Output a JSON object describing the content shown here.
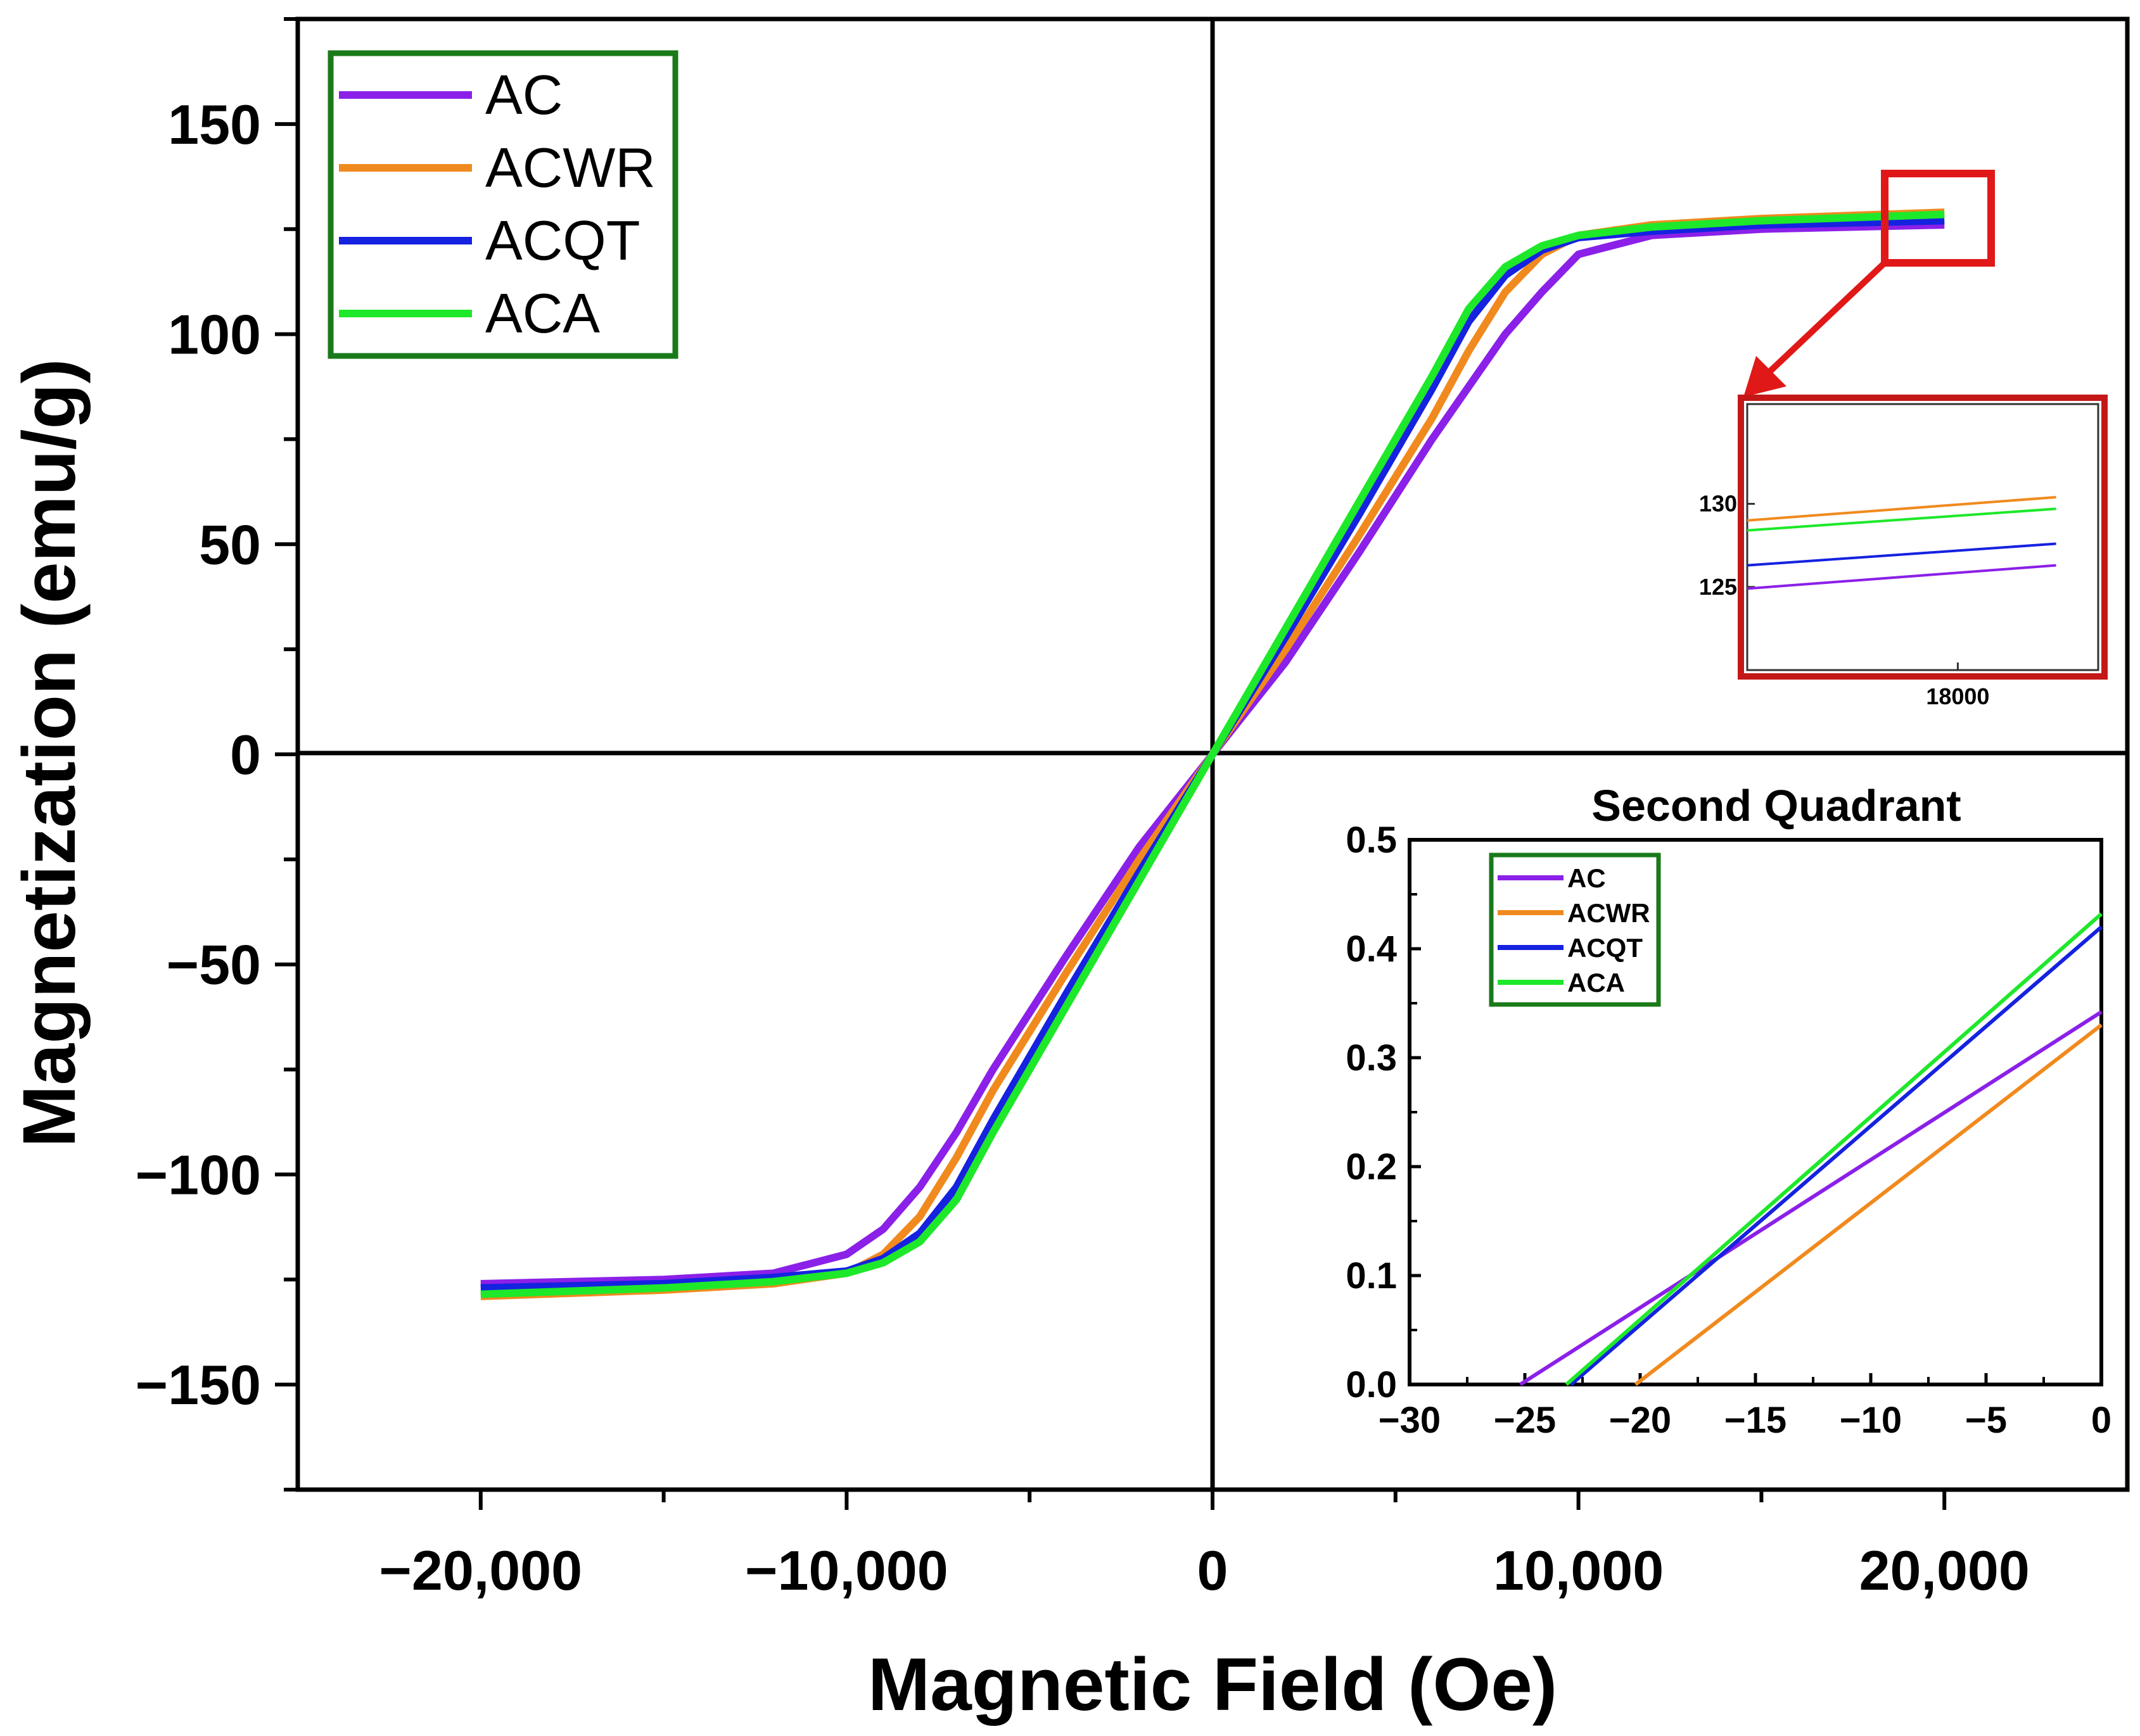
{
  "chart_data": [
    {
      "type": "line",
      "title": "",
      "xlabel": "Magnetic Field (Oe)",
      "ylabel": "Magnetization (emu/g)",
      "xlim": [
        -25000,
        25000
      ],
      "ylim": [
        -175,
        175
      ],
      "xticks": [
        -20000,
        -10000,
        0,
        10000,
        20000
      ],
      "xtick_labels": [
        "−20,000",
        "−10,000",
        "0",
        "10,000",
        "20,000"
      ],
      "yticks": [
        150,
        100,
        50,
        0,
        -50,
        -100,
        -150
      ],
      "ytick_labels": [
        "150",
        "100",
        "50",
        "0",
        "−50",
        "−100",
        "−150"
      ],
      "legend_position": "top-left",
      "series": [
        {
          "name": "AC",
          "color": "#8b20e8",
          "x": [
            -20000,
            -15000,
            -12000,
            -10000,
            -9000,
            -8000,
            -7000,
            -6000,
            -4000,
            -2000,
            0,
            2000,
            4000,
            6000,
            8000,
            9000,
            10000,
            12000,
            15000,
            20000
          ],
          "y": [
            -126,
            -125,
            -123.5,
            -119,
            -113,
            -103,
            -90,
            -75,
            -48,
            -22,
            0,
            22,
            48,
            75,
            100,
            110,
            119,
            123.5,
            125,
            126
          ]
        },
        {
          "name": "ACWR",
          "color": "#f08a1e",
          "x": [
            -20000,
            -15000,
            -12000,
            -10000,
            -9000,
            -8000,
            -7000,
            -6000,
            -4000,
            -2000,
            0,
            2000,
            4000,
            6000,
            7000,
            8000,
            9000,
            10000,
            12000,
            15000,
            20000
          ],
          "y": [
            -129,
            -127.5,
            -126,
            -123.5,
            -119,
            -110,
            -96,
            -80,
            -52,
            -25,
            0,
            25,
            52,
            80,
            96,
            110,
            119,
            123.5,
            126,
            127.5,
            129
          ]
        },
        {
          "name": "ACQT",
          "color": "#1522e0",
          "x": [
            -20000,
            -15000,
            -12000,
            -10000,
            -9000,
            -8000,
            -7000,
            -6000,
            -5000,
            -4000,
            -2000,
            0,
            2000,
            4000,
            5000,
            6000,
            7000,
            8000,
            9000,
            10000,
            12000,
            15000,
            20000
          ],
          "y": [
            -127,
            -126,
            -124.5,
            -123,
            -120,
            -114,
            -103,
            -87,
            -72,
            -57,
            -28,
            0,
            28,
            57,
            72,
            87,
            103,
            114,
            120,
            123,
            124.5,
            126,
            127
          ]
        },
        {
          "name": "ACA",
          "color": "#1ee82a",
          "x": [
            -20000,
            -15000,
            -12000,
            -10000,
            -9000,
            -8000,
            -7000,
            -6000,
            -5000,
            -4000,
            -2000,
            0,
            2000,
            4000,
            5000,
            6000,
            7000,
            8000,
            9000,
            10000,
            12000,
            15000,
            20000
          ],
          "y": [
            -128.5,
            -127,
            -125.5,
            -123.5,
            -121,
            -116,
            -106,
            -90,
            -75,
            -60,
            -30,
            0,
            30,
            60,
            75,
            90,
            106,
            116,
            121,
            123.5,
            125.5,
            127,
            128.5
          ]
        }
      ]
    },
    {
      "type": "line",
      "title": "",
      "xlabel": "",
      "ylabel": "",
      "xlim": [
        16500,
        19000
      ],
      "ylim": [
        120,
        136
      ],
      "xticks": [
        18000
      ],
      "xtick_labels": [
        "18000"
      ],
      "yticks": [
        130,
        125
      ],
      "ytick_labels": [
        "130",
        "125"
      ],
      "series": [
        {
          "name": "ACWR",
          "color": "#f08a1e",
          "x": [
            16500,
            18700
          ],
          "y": [
            129.0,
            130.4
          ]
        },
        {
          "name": "ACA",
          "color": "#1ee82a",
          "x": [
            16500,
            18700
          ],
          "y": [
            128.4,
            129.7
          ]
        },
        {
          "name": "ACQT",
          "color": "#1522e0",
          "x": [
            16500,
            18700
          ],
          "y": [
            126.3,
            127.6
          ]
        },
        {
          "name": "AC",
          "color": "#8b20e8",
          "x": [
            16500,
            18700
          ],
          "y": [
            124.9,
            126.3
          ]
        }
      ]
    },
    {
      "type": "line",
      "title": "Second Quadrant",
      "xlabel": "",
      "ylabel": "",
      "xlim": [
        -30,
        0
      ],
      "ylim": [
        0,
        0.5
      ],
      "xticks": [
        -30,
        -25,
        -20,
        -15,
        -10,
        -5,
        0
      ],
      "xtick_labels": [
        "−30",
        "−25",
        "−20",
        "−15",
        "−10",
        "−5",
        "0"
      ],
      "yticks": [
        0.5,
        0.4,
        0.3,
        0.2,
        0.1,
        0.0
      ],
      "ytick_labels": [
        "0.5",
        "0.4",
        "0.3",
        "0.2",
        "0.1",
        "0.0"
      ],
      "legend_position": "top-left",
      "series": [
        {
          "name": "AC",
          "color": "#8b20e8",
          "x": [
            -25.2,
            0
          ],
          "y": [
            0.0,
            0.342
          ]
        },
        {
          "name": "ACWR",
          "color": "#f08a1e",
          "x": [
            -20.2,
            0
          ],
          "y": [
            0.0,
            0.33
          ]
        },
        {
          "name": "ACQT",
          "color": "#1522e0",
          "x": [
            -23.0,
            0
          ],
          "y": [
            0.0,
            0.42
          ]
        },
        {
          "name": "ACA",
          "color": "#1ee82a",
          "x": [
            -23.2,
            0
          ],
          "y": [
            0.0,
            0.432
          ]
        }
      ]
    }
  ],
  "colors": {
    "axis": "#000000",
    "main_legend_border": "#1a7a1a",
    "zoom_box": "#e01818",
    "zoom_inset_border": "#c41818",
    "zoom_inset_inner_border": "#333333",
    "quadrant_legend_border": "#1a7a1a"
  }
}
